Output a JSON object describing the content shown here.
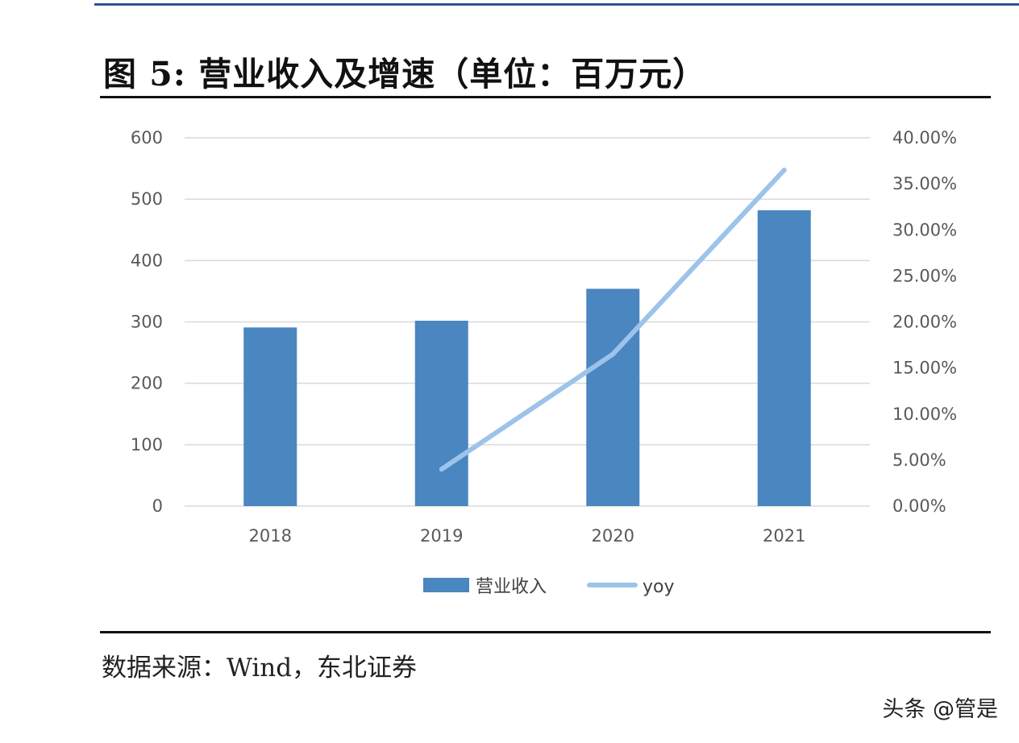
{
  "figure": {
    "title": "图 5: 营业收入及增速（单位：百万元）",
    "source": "数据来源：Wind，东北证券",
    "watermark": "头条 @管是"
  },
  "colors": {
    "bar": "#4a86c0",
    "line": "#9dc3ea",
    "grid": "#d9d9d9",
    "top_rule": "#2f5597"
  },
  "chart_data": {
    "type": "bar",
    "title": "",
    "categories": [
      "2018",
      "2019",
      "2020",
      "2021"
    ],
    "series": [
      {
        "name": "营业收入",
        "type": "bar",
        "axis": "left",
        "values": [
          291,
          302,
          354,
          482
        ]
      },
      {
        "name": "yoy",
        "type": "line",
        "axis": "right",
        "values": [
          null,
          0.04,
          0.165,
          0.365
        ]
      }
    ],
    "y_left": {
      "min": 0,
      "max": 600,
      "ticks": [
        "0",
        "100",
        "200",
        "300",
        "400",
        "500",
        "600"
      ]
    },
    "y_right": {
      "min": 0,
      "max": 0.4,
      "ticks": [
        "0.00%",
        "5.00%",
        "10.00%",
        "15.00%",
        "20.00%",
        "25.00%",
        "30.00%",
        "35.00%",
        "40.00%"
      ]
    },
    "grid": true,
    "legend": "bottom-center"
  }
}
